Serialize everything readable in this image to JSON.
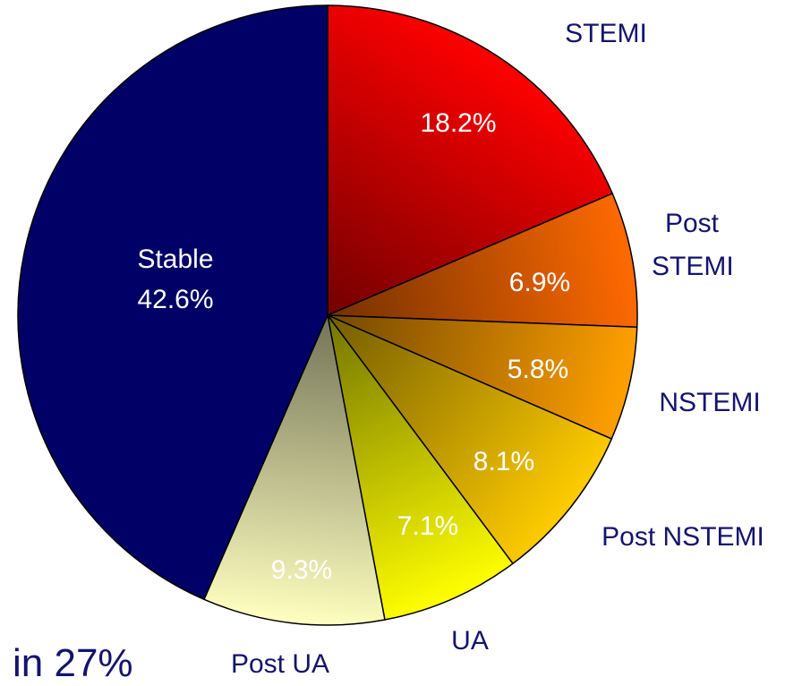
{
  "chart_data": {
    "type": "pie",
    "categories": [
      "STEMI",
      "Post STEMI",
      "NSTEMI",
      "Post NSTEMI",
      "UA",
      "Post UA",
      "Stable"
    ],
    "values": [
      18.2,
      6.9,
      5.8,
      8.1,
      7.1,
      9.3,
      42.6
    ],
    "value_labels": [
      "18.2%",
      "6.9%",
      "5.8%",
      "8.1%",
      "7.1%",
      "9.3%",
      "42.6%"
    ],
    "colors": [
      "#ff0000",
      "#ff6a00",
      "#ffa000",
      "#ffcc00",
      "#ffff00",
      "#ffffc0",
      "#000066"
    ],
    "annotation": "in 27%"
  }
}
